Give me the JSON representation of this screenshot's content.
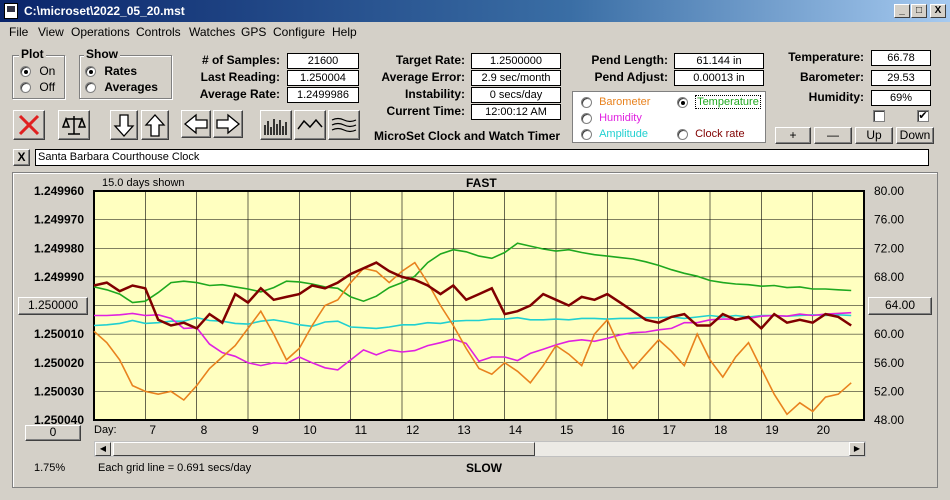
{
  "window": {
    "title": "C:\\microset\\2022_05_20.mst",
    "minimize": "_",
    "maximize": "□",
    "close": "X"
  },
  "menu": [
    "File",
    "View",
    "Operations",
    "Controls",
    "Watches",
    "GPS",
    "Configure",
    "Help"
  ],
  "plot": {
    "label": "Plot",
    "on": "On",
    "off": "Off",
    "selected": "On"
  },
  "show": {
    "label": "Show",
    "rates": "Rates",
    "averages": "Averages",
    "selected": "Rates"
  },
  "stats": {
    "samples_label": "# of Samples:",
    "samples": "21600",
    "last_label": "Last Reading:",
    "last": "1.250004",
    "avg_label": "Average Rate:",
    "avg": "1.2499986"
  },
  "target": {
    "target_label": "Target Rate:",
    "target": "1.2500000",
    "error_label": "Average Error:",
    "error": "2.9 sec/month",
    "instab_label": "Instability:",
    "instab": "0 secs/day",
    "time_label": "Current Time:",
    "time": "12:00:12 AM"
  },
  "pend": {
    "length_label": "Pend Length:",
    "length": "61.144 in",
    "adjust_label": "Pend Adjust:",
    "adjust": "0.00013 in"
  },
  "env": {
    "temp_label": "Temperature:",
    "temp": "66.78",
    "baro_label": "Barometer:",
    "baro": "29.53",
    "hum_label": "Humidity:",
    "hum": "69%",
    "plus": "+",
    "minus": "—",
    "up": "Up",
    "down": "Down"
  },
  "app_caption": "MicroSet Clock and Watch Timer",
  "overlay_options": [
    {
      "label": "Barometer",
      "color": "#e8821e",
      "selected": false
    },
    {
      "label": "Temperature",
      "color": "#1fa81f",
      "selected": true
    },
    {
      "label": "Humidity",
      "color": "#e020e0",
      "selected": false
    },
    {
      "label": "Amplitude",
      "color": "#20d0d0",
      "selected": false
    },
    {
      "label": "Clock rate",
      "color": "#800000",
      "selected": false
    }
  ],
  "clock_name": "Santa Barbara Courthouse Clock",
  "clear_name": "X",
  "chart": {
    "days_shown": "15.0 days shown",
    "top_label": "FAST",
    "bottom_label": "SLOW",
    "left_ticks": [
      "1.249960",
      "1.249970",
      "1.249980",
      "1.249990",
      "1.250000",
      "1.250010",
      "1.250020",
      "1.250030",
      "1.250040"
    ],
    "right_ticks": [
      "80.00",
      "76.00",
      "72.00",
      "68.00",
      "64.00",
      "60.00",
      "56.00",
      "52.00",
      "48.00"
    ],
    "center_left": "1.250000",
    "center_right": "64.00",
    "zero_btn": "0",
    "day_label": "Day:",
    "days": [
      "7",
      "8",
      "9",
      "10",
      "11",
      "12",
      "13",
      "14",
      "15",
      "16",
      "17",
      "18",
      "19",
      "20"
    ],
    "percent": "1.75%",
    "grid_note": "Each grid line = 0.691 secs/day"
  },
  "chart_data": {
    "type": "line",
    "xlabel": "Day:",
    "x_range": [
      6,
      21
    ],
    "ylim_left": [
      1.25004,
      1.24996
    ],
    "ylim_right": [
      48,
      80
    ],
    "x": [
      6.0,
      6.25,
      6.5,
      6.75,
      7.0,
      7.25,
      7.5,
      7.75,
      8.0,
      8.25,
      8.5,
      8.75,
      9.0,
      9.25,
      9.5,
      9.75,
      10.0,
      10.25,
      10.5,
      10.75,
      11.0,
      11.25,
      11.5,
      11.75,
      12.0,
      12.25,
      12.5,
      12.75,
      13.0,
      13.25,
      13.5,
      13.75,
      14.0,
      14.25,
      14.5,
      14.75,
      15.0,
      15.25,
      15.5,
      15.75,
      16.0,
      16.25,
      16.5,
      16.75,
      17.0,
      17.25,
      17.5,
      17.75,
      18.0,
      18.25,
      18.5,
      18.75,
      19.0,
      19.25,
      19.5,
      19.75,
      20.0,
      20.25,
      20.5,
      20.75
    ],
    "series": [
      {
        "name": "Clock rate",
        "color": "#800000",
        "axis": "left",
        "values": [
          1.249993,
          1.249992,
          1.249995,
          1.249993,
          1.249994,
          1.250005,
          1.250007,
          1.250006,
          1.250008,
          1.250003,
          1.250006,
          1.249996,
          1.249999,
          1.249994,
          1.249998,
          1.249997,
          1.249996,
          1.249993,
          1.249994,
          1.249992,
          1.249989,
          1.249987,
          1.249985,
          1.249988,
          1.24999,
          1.249991,
          1.249993,
          1.249996,
          1.249993,
          1.249998,
          1.249996,
          1.249994,
          1.250003,
          1.250002,
          1.25,
          1.249996,
          1.249998,
          1.25,
          1.249997,
          1.249998,
          1.249996,
          1.249999,
          1.250002,
          1.250005,
          1.250006,
          1.250004,
          1.250003,
          1.250007,
          1.250007,
          1.250003,
          1.250005,
          1.250004,
          1.250008,
          1.250003,
          1.250006,
          1.250005,
          1.250006,
          1.250003,
          1.250004,
          1.250007
        ]
      },
      {
        "name": "Barometer",
        "color": "#e8821e",
        "axis": "left",
        "values": [
          1.250009,
          1.250013,
          1.250019,
          1.250028,
          1.25003,
          1.250031,
          1.25003,
          1.250033,
          1.250028,
          1.250022,
          1.250018,
          1.250014,
          1.250008,
          1.250002,
          1.25001,
          1.250019,
          1.250015,
          1.250007,
          1.25,
          1.249998,
          1.249992,
          1.249987,
          1.249988,
          1.249992,
          1.249988,
          1.249985,
          1.249992,
          1.25,
          1.250007,
          1.250015,
          1.250022,
          1.250024,
          1.25002,
          1.250023,
          1.250027,
          1.250021,
          1.250014,
          1.250017,
          1.250021,
          1.25001,
          1.250005,
          1.250015,
          1.250022,
          1.250017,
          1.250012,
          1.250016,
          1.250021,
          1.25001,
          1.250019,
          1.250025,
          1.250018,
          1.250013,
          1.250022,
          1.250031,
          1.250038,
          1.250034,
          1.250037,
          1.250032,
          1.250031,
          1.250027
        ]
      },
      {
        "name": "Temperature",
        "color": "#1fa81f",
        "axis": "right",
        "values": [
          66.6,
          66.2,
          65.6,
          64.4,
          64.6,
          65.8,
          67.2,
          67.4,
          67.2,
          66.8,
          66.9,
          66.6,
          66.3,
          65.9,
          66.5,
          67.4,
          67.3,
          67.0,
          66.6,
          66.4,
          65.2,
          64.6,
          65.3,
          66.5,
          67.2,
          68.1,
          70.0,
          71.2,
          71.8,
          71.5,
          70.9,
          70.6,
          71.4,
          72.7,
          72.3,
          71.9,
          71.6,
          71.8,
          71.4,
          71.1,
          70.9,
          70.7,
          70.5,
          70.1,
          69.6,
          69.0,
          68.5,
          68.1,
          67.5,
          67.2,
          67.0,
          66.9,
          66.7,
          66.8,
          66.5,
          66.6,
          66.3,
          66.3,
          66.2,
          66.1
        ]
      },
      {
        "name": "Humidity",
        "color": "#e020e0",
        "axis": "right",
        "values": [
          62.6,
          62.6,
          62.7,
          62.9,
          62.6,
          62.7,
          62.2,
          60.8,
          60.9,
          58.6,
          57.4,
          56.9,
          56.0,
          55.6,
          56.0,
          55.9,
          56.8,
          56.0,
          55.3,
          55.0,
          56.4,
          57.8,
          57.1,
          57.8,
          57.5,
          57.7,
          58.4,
          58.8,
          59.3,
          58.7,
          56.2,
          56.8,
          56.8,
          56.3,
          57.3,
          57.9,
          58.5,
          59.0,
          59.2,
          59.0,
          59.4,
          59.9,
          60.2,
          60.3,
          60.6,
          60.8,
          61.6,
          61.6,
          62.0,
          62.1,
          62.1,
          62.2,
          62.5,
          62.6,
          62.5,
          62.8,
          62.6,
          62.8,
          62.9,
          63.0
        ]
      },
      {
        "name": "Amplitude",
        "color": "#20d0d0",
        "axis": "right",
        "values": [
          61.2,
          61.3,
          61.5,
          61.9,
          61.5,
          61.6,
          61.8,
          61.8,
          62.3,
          61.9,
          61.8,
          61.5,
          61.4,
          61.8,
          62.0,
          61.7,
          61.3,
          61.1,
          61.7,
          61.8,
          61.0,
          60.9,
          60.8,
          61.0,
          61.3,
          61.3,
          61.6,
          61.5,
          61.8,
          61.9,
          61.9,
          62.1,
          62.1,
          62.3,
          62.0,
          62.0,
          62.1,
          62.0,
          62.2,
          62.2,
          62.1,
          62.2,
          62.2,
          62.3,
          62.3,
          62.4,
          62.2,
          62.4,
          62.6,
          62.4,
          62.6,
          62.4,
          62.6,
          62.6,
          62.5,
          62.6,
          62.7,
          62.6,
          62.7,
          62.6
        ]
      }
    ]
  }
}
